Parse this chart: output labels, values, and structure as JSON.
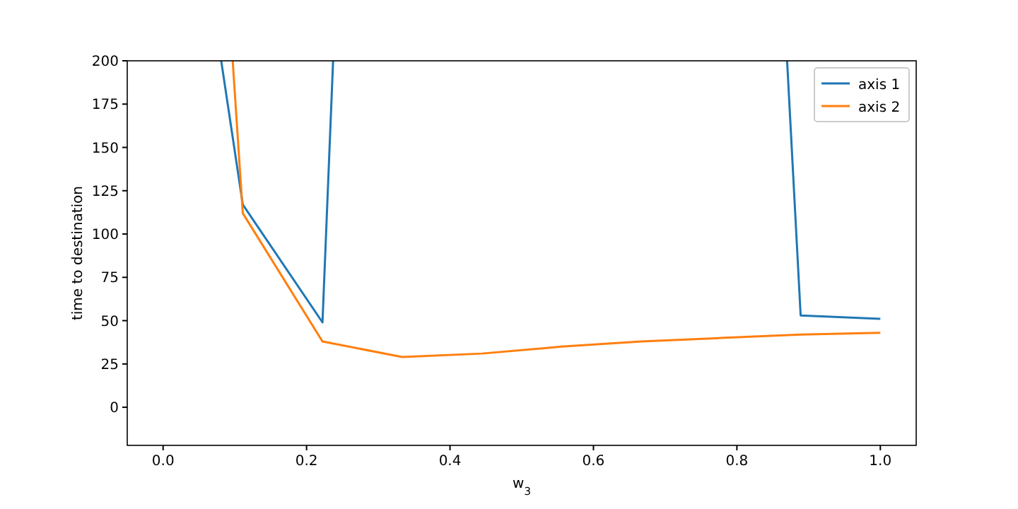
{
  "chart_data": {
    "type": "line",
    "xlabel": "w$_{3}$",
    "ylabel": "time to destination",
    "series": [
      {
        "name": "axis 1",
        "color": "#1f77b4",
        "x": [
          0.081,
          0.1111,
          0.2222,
          0.237,
          0.55,
          0.87,
          0.8889,
          1.0
        ],
        "values": [
          200,
          117,
          49,
          200,
          null,
          200,
          53,
          51
        ]
      },
      {
        "name": "axis 2",
        "color": "#ff7f0e",
        "x": [
          0.097,
          0.1111,
          0.2222,
          0.3333,
          0.4444,
          0.5556,
          0.6667,
          0.7778,
          0.8889,
          1.0
        ],
        "values": [
          200,
          112,
          38,
          29,
          31,
          35,
          38,
          40,
          42,
          43
        ]
      }
    ],
    "xlim": [
      -0.05,
      1.05
    ],
    "ylim": [
      -22,
      200
    ],
    "xticks": [
      {
        "value": 0,
        "label": "0.0"
      },
      {
        "value": 0.2,
        "label": "0.2"
      },
      {
        "value": 0.4,
        "label": "0.4"
      },
      {
        "value": 0.6,
        "label": "0.6"
      },
      {
        "value": 0.8,
        "label": "0.8"
      },
      {
        "value": 1,
        "label": "1.0"
      }
    ],
    "yticks": [
      0,
      25,
      50,
      75,
      100,
      125,
      150,
      175,
      200
    ],
    "legend": "top right",
    "grid": false
  }
}
